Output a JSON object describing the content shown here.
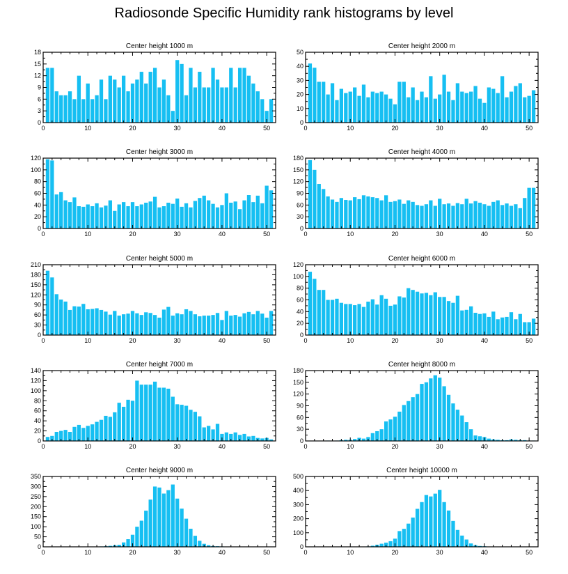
{
  "title": "Radiosonde Specific Humidity rank histograms by level",
  "colors": {
    "bar": "#16bff2",
    "axis": "#000000",
    "background": "#ffffff"
  },
  "chart_data": [
    {
      "type": "bar",
      "title": "Center height 1000 m",
      "ylim": [
        0,
        18
      ],
      "yticks": [
        0,
        3,
        6,
        9,
        12,
        15,
        18
      ],
      "xlim": [
        0,
        52
      ],
      "xticks": [
        0,
        10,
        20,
        30,
        40,
        50
      ],
      "x_start": 1,
      "values": [
        14,
        14,
        8,
        7,
        7,
        8,
        6,
        12,
        6,
        10,
        6,
        7,
        11,
        6,
        12,
        11,
        9,
        12,
        8,
        10,
        11,
        13,
        10,
        13,
        14,
        9,
        11,
        7,
        3,
        16,
        15,
        7,
        14,
        9,
        13,
        9,
        9,
        14,
        11,
        9,
        9,
        14,
        9,
        14,
        14,
        12,
        10,
        8,
        6,
        3,
        6
      ]
    },
    {
      "type": "bar",
      "title": "Center height 2000 m",
      "ylim": [
        0,
        50
      ],
      "yticks": [
        0,
        10,
        20,
        30,
        40,
        50
      ],
      "xlim": [
        0,
        52
      ],
      "xticks": [
        0,
        10,
        20,
        30,
        40,
        50
      ],
      "x_start": 1,
      "values": [
        42,
        39,
        29,
        29,
        20,
        28,
        16,
        24,
        21,
        22,
        25,
        19,
        27,
        18,
        22,
        21,
        22,
        20,
        17,
        13,
        29,
        29,
        18,
        25,
        16,
        22,
        18,
        33,
        17,
        20,
        34,
        22,
        16,
        28,
        22,
        21,
        22,
        26,
        17,
        14,
        25,
        24,
        21,
        33,
        18,
        22,
        26,
        28,
        18,
        19,
        23
      ]
    },
    {
      "type": "bar",
      "title": "Center height 3000 m",
      "ylim": [
        0,
        120
      ],
      "yticks": [
        0,
        20,
        40,
        60,
        80,
        100,
        120
      ],
      "xlim": [
        0,
        52
      ],
      "xticks": [
        0,
        10,
        20,
        30,
        40,
        50
      ],
      "x_start": 1,
      "values": [
        118,
        116,
        58,
        62,
        48,
        45,
        53,
        38,
        37,
        41,
        38,
        43,
        36,
        39,
        48,
        30,
        41,
        45,
        38,
        45,
        38,
        41,
        44,
        46,
        54,
        36,
        38,
        44,
        42,
        51,
        37,
        43,
        36,
        47,
        52,
        56,
        48,
        42,
        36,
        40,
        60,
        44,
        46,
        33,
        48,
        57,
        45,
        56,
        43,
        73,
        65
      ]
    },
    {
      "type": "bar",
      "title": "Center height 4000 m",
      "ylim": [
        0,
        180
      ],
      "yticks": [
        0,
        30,
        60,
        90,
        120,
        150,
        180
      ],
      "xlim": [
        0,
        52
      ],
      "xticks": [
        0,
        10,
        20,
        30,
        40,
        50
      ],
      "x_start": 1,
      "values": [
        175,
        150,
        114,
        101,
        82,
        74,
        68,
        78,
        73,
        72,
        80,
        75,
        85,
        82,
        80,
        78,
        72,
        85,
        68,
        70,
        74,
        63,
        72,
        68,
        60,
        58,
        62,
        72,
        58,
        76,
        62,
        64,
        58,
        65,
        62,
        76,
        64,
        70,
        66,
        62,
        58,
        68,
        72,
        60,
        64,
        58,
        62,
        52,
        78,
        104,
        104
      ]
    },
    {
      "type": "bar",
      "title": "Center height 5000 m",
      "ylim": [
        0,
        210
      ],
      "yticks": [
        0,
        30,
        60,
        90,
        120,
        150,
        180,
        210
      ],
      "xlim": [
        0,
        52
      ],
      "xticks": [
        0,
        10,
        20,
        30,
        40,
        50
      ],
      "x_start": 1,
      "values": [
        192,
        172,
        122,
        106,
        100,
        75,
        86,
        85,
        93,
        77,
        78,
        80,
        75,
        70,
        61,
        72,
        58,
        62,
        64,
        72,
        65,
        60,
        68,
        66,
        60,
        52,
        76,
        84,
        58,
        65,
        62,
        77,
        72,
        62,
        56,
        58,
        58,
        60,
        66,
        45,
        72,
        58,
        60,
        55,
        65,
        69,
        62,
        72,
        64,
        52,
        72
      ]
    },
    {
      "type": "bar",
      "title": "Center height 6000 m",
      "ylim": [
        0,
        120
      ],
      "yticks": [
        0,
        20,
        40,
        60,
        80,
        100,
        120
      ],
      "xlim": [
        0,
        52
      ],
      "xticks": [
        0,
        10,
        20,
        30,
        40,
        50
      ],
      "x_start": 1,
      "values": [
        108,
        96,
        77,
        77,
        60,
        60,
        62,
        55,
        53,
        53,
        51,
        53,
        48,
        57,
        61,
        52,
        68,
        62,
        50,
        52,
        66,
        64,
        80,
        77,
        74,
        71,
        72,
        68,
        73,
        65,
        65,
        58,
        55,
        67,
        42,
        43,
        49,
        38,
        36,
        37,
        31,
        40,
        27,
        30,
        31,
        39,
        27,
        36,
        22,
        22,
        28
      ]
    },
    {
      "type": "bar",
      "title": "Center height 7000 m",
      "ylim": [
        0,
        140
      ],
      "yticks": [
        0,
        20,
        40,
        60,
        80,
        100,
        120,
        140
      ],
      "xlim": [
        0,
        52
      ],
      "xticks": [
        0,
        10,
        20,
        30,
        40,
        50
      ],
      "x_start": 1,
      "values": [
        8,
        10,
        18,
        20,
        22,
        18,
        28,
        32,
        26,
        30,
        33,
        38,
        42,
        50,
        48,
        57,
        76,
        68,
        82,
        80,
        120,
        112,
        112,
        112,
        118,
        106,
        106,
        104,
        88,
        73,
        72,
        70,
        62,
        58,
        49,
        27,
        30,
        23,
        34,
        14,
        17,
        14,
        17,
        12,
        14,
        9,
        10,
        6,
        5,
        6,
        3
      ]
    },
    {
      "type": "bar",
      "title": "Center height 8000 m",
      "ylim": [
        0,
        180
      ],
      "yticks": [
        0,
        30,
        60,
        90,
        120,
        150,
        180
      ],
      "xlim": [
        0,
        52
      ],
      "xticks": [
        0,
        10,
        20,
        30,
        40,
        50
      ],
      "x_start": 1,
      "values": [
        0,
        0,
        0,
        0,
        1,
        0,
        1,
        2,
        3,
        3,
        5,
        8,
        6,
        10,
        20,
        25,
        30,
        50,
        55,
        62,
        75,
        92,
        102,
        112,
        120,
        146,
        150,
        160,
        168,
        162,
        140,
        118,
        96,
        80,
        65,
        48,
        30,
        14,
        12,
        10,
        6,
        4,
        3,
        2,
        2,
        4,
        3,
        2,
        2,
        1,
        1
      ]
    },
    {
      "type": "bar",
      "title": "Center height 9000 m",
      "ylim": [
        0,
        350
      ],
      "yticks": [
        0,
        50,
        100,
        150,
        200,
        250,
        300,
        350
      ],
      "xlim": [
        0,
        52
      ],
      "xticks": [
        0,
        10,
        20,
        30,
        40,
        50
      ],
      "x_start": 1,
      "values": [
        0,
        0,
        0,
        0,
        0,
        0,
        0,
        0,
        0,
        0,
        0,
        0,
        2,
        3,
        5,
        8,
        10,
        22,
        38,
        60,
        100,
        130,
        180,
        235,
        300,
        295,
        265,
        282,
        310,
        240,
        190,
        140,
        90,
        55,
        30,
        15,
        8,
        4,
        3,
        2,
        1,
        1,
        0,
        0,
        0,
        0,
        0,
        0,
        0,
        0,
        0
      ]
    },
    {
      "type": "bar",
      "title": "Center height 10000 m",
      "ylim": [
        0,
        500
      ],
      "yticks": [
        0,
        100,
        200,
        300,
        400,
        500
      ],
      "xlim": [
        0,
        52
      ],
      "xticks": [
        0,
        10,
        20,
        30,
        40,
        50
      ],
      "x_start": 1,
      "values": [
        0,
        0,
        0,
        0,
        0,
        0,
        0,
        0,
        0,
        0,
        0,
        0,
        1,
        3,
        8,
        15,
        22,
        30,
        40,
        58,
        112,
        128,
        165,
        208,
        270,
        318,
        368,
        358,
        378,
        405,
        318,
        258,
        184,
        120,
        80,
        52,
        24,
        12,
        6,
        4,
        2,
        1,
        1,
        0,
        0,
        0,
        0,
        0,
        0,
        0,
        0
      ]
    }
  ]
}
